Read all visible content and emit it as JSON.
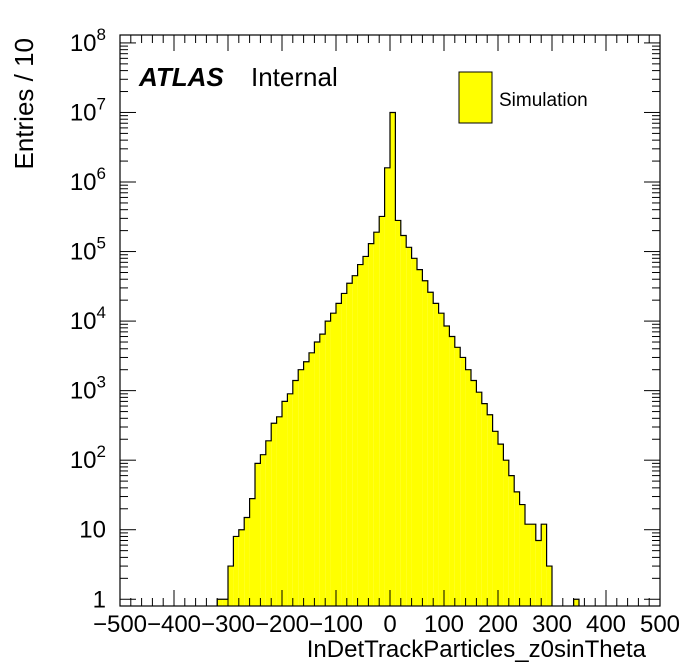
{
  "chart_data": {
    "type": "histogram",
    "title": "",
    "xlabel": "InDetTrackParticles_z0sinTheta",
    "ylabel": "Entries / 10",
    "xlim": [
      -500,
      500
    ],
    "ylim": [
      0.8,
      130000000
    ],
    "y_scale": "log",
    "grid": false,
    "legend_position": "top-right",
    "atlas_label": "ATLAS",
    "status_label": "Internal",
    "x_ticks": [
      "−500",
      "−400",
      "−300",
      "−200",
      "−100",
      "0",
      "100",
      "200",
      "300",
      "400",
      "500"
    ],
    "x_tick_values": [
      -500,
      -400,
      -300,
      -200,
      -100,
      0,
      100,
      200,
      300,
      400,
      500
    ],
    "y_ticks": [
      {
        "value": 1,
        "base": "1",
        "exp": ""
      },
      {
        "value": 10,
        "base": "10",
        "exp": ""
      },
      {
        "value": 100,
        "base": "10",
        "exp": "2"
      },
      {
        "value": 1000,
        "base": "10",
        "exp": "3"
      },
      {
        "value": 10000,
        "base": "10",
        "exp": "4"
      },
      {
        "value": 100000,
        "base": "10",
        "exp": "5"
      },
      {
        "value": 1000000,
        "base": "10",
        "exp": "6"
      },
      {
        "value": 10000000,
        "base": "10",
        "exp": "7"
      },
      {
        "value": 100000000,
        "base": "10",
        "exp": "8"
      }
    ],
    "bin_width": 10,
    "series": [
      {
        "name": "Simulation",
        "color": "#ffff00",
        "edge_color": "#000000",
        "bins": [
          {
            "x": -320,
            "y": 1
          },
          {
            "x": -310,
            "y": 1
          },
          {
            "x": -300,
            "y": 3
          },
          {
            "x": -290,
            "y": 8
          },
          {
            "x": -280,
            "y": 10
          },
          {
            "x": -270,
            "y": 15
          },
          {
            "x": -260,
            "y": 28
          },
          {
            "x": -250,
            "y": 90
          },
          {
            "x": -240,
            "y": 120
          },
          {
            "x": -230,
            "y": 190
          },
          {
            "x": -220,
            "y": 340
          },
          {
            "x": -210,
            "y": 420
          },
          {
            "x": -200,
            "y": 700
          },
          {
            "x": -190,
            "y": 900
          },
          {
            "x": -180,
            "y": 1400
          },
          {
            "x": -170,
            "y": 2000
          },
          {
            "x": -160,
            "y": 2600
          },
          {
            "x": -150,
            "y": 3500
          },
          {
            "x": -140,
            "y": 5000
          },
          {
            "x": -130,
            "y": 6500
          },
          {
            "x": -120,
            "y": 10000
          },
          {
            "x": -110,
            "y": 13000
          },
          {
            "x": -100,
            "y": 18000
          },
          {
            "x": -90,
            "y": 25000
          },
          {
            "x": -80,
            "y": 35000
          },
          {
            "x": -70,
            "y": 45000
          },
          {
            "x": -60,
            "y": 65000
          },
          {
            "x": -50,
            "y": 85000
          },
          {
            "x": -40,
            "y": 130000
          },
          {
            "x": -30,
            "y": 190000
          },
          {
            "x": -20,
            "y": 320000
          },
          {
            "x": -10,
            "y": 1600000
          },
          {
            "x": 0,
            "y": 10000000
          },
          {
            "x": 10,
            "y": 280000
          },
          {
            "x": 20,
            "y": 170000
          },
          {
            "x": 30,
            "y": 115000
          },
          {
            "x": 40,
            "y": 80000
          },
          {
            "x": 50,
            "y": 55000
          },
          {
            "x": 60,
            "y": 38000
          },
          {
            "x": 70,
            "y": 26000
          },
          {
            "x": 80,
            "y": 18000
          },
          {
            "x": 90,
            "y": 13000
          },
          {
            "x": 100,
            "y": 8500
          },
          {
            "x": 110,
            "y": 6000
          },
          {
            "x": 120,
            "y": 4200
          },
          {
            "x": 130,
            "y": 3000
          },
          {
            "x": 140,
            "y": 2000
          },
          {
            "x": 150,
            "y": 1400
          },
          {
            "x": 160,
            "y": 950
          },
          {
            "x": 170,
            "y": 650
          },
          {
            "x": 180,
            "y": 450
          },
          {
            "x": 190,
            "y": 260
          },
          {
            "x": 200,
            "y": 170
          },
          {
            "x": 210,
            "y": 100
          },
          {
            "x": 220,
            "y": 60
          },
          {
            "x": 230,
            "y": 35
          },
          {
            "x": 240,
            "y": 23
          },
          {
            "x": 250,
            "y": 12
          },
          {
            "x": 260,
            "y": 12
          },
          {
            "x": 270,
            "y": 7
          },
          {
            "x": 280,
            "y": 12
          },
          {
            "x": 290,
            "y": 3
          },
          {
            "x": 340,
            "y": 1
          }
        ]
      }
    ]
  }
}
